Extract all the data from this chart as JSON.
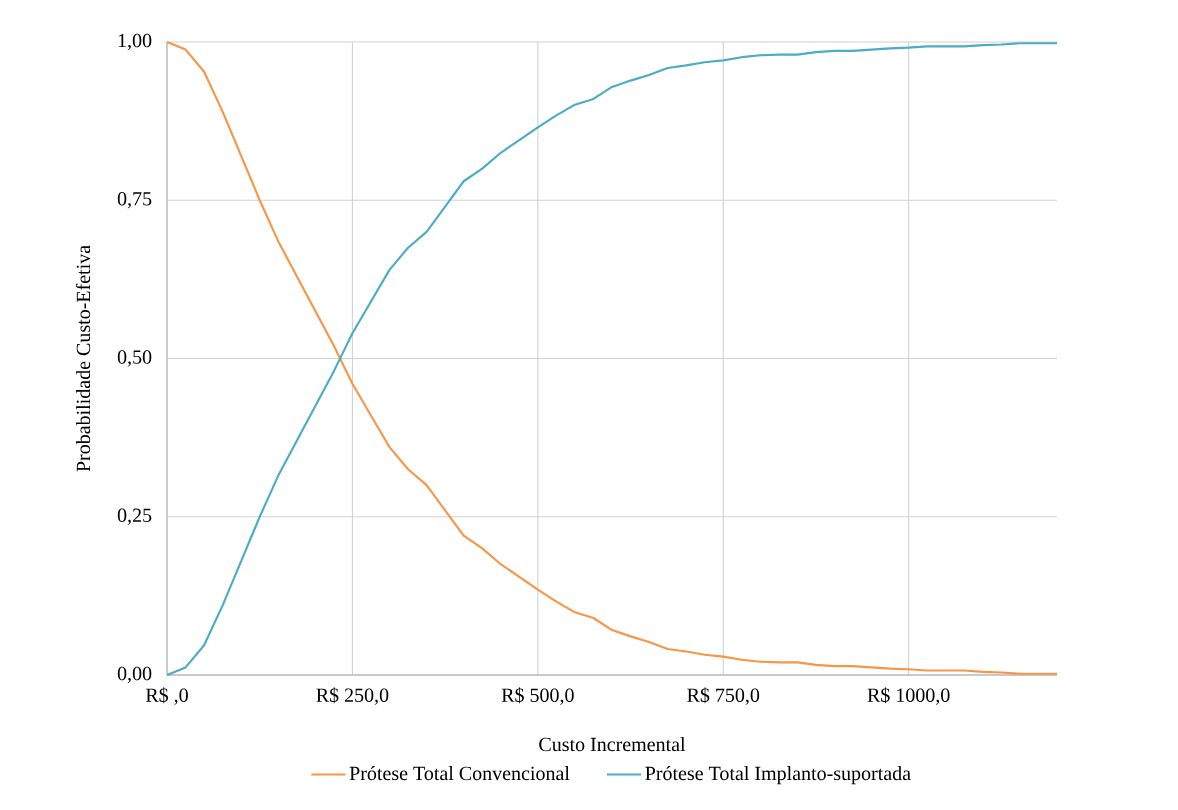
{
  "chart_data": {
    "type": "line",
    "xlabel": "Custo Incremental",
    "ylabel": "Probabilidade  Custo-Efetiva",
    "categories": [
      "R$ ,0",
      null,
      null,
      null,
      null,
      null,
      null,
      null,
      null,
      null,
      "R$ 250,0",
      null,
      null,
      null,
      null,
      null,
      null,
      null,
      null,
      null,
      "R$ 500,0",
      null,
      null,
      null,
      null,
      null,
      null,
      null,
      null,
      null,
      "R$ 750,0",
      null,
      null,
      null,
      null,
      null,
      null,
      null,
      null,
      null,
      "R$ 1000,0",
      null,
      null,
      null,
      null,
      null,
      null,
      null,
      null
    ],
    "series": [
      {
        "name": "Prótese Total Convencional",
        "color": "#f79646",
        "values": [
          1.0,
          0.988,
          0.953,
          0.89,
          0.82,
          0.75,
          0.685,
          0.63,
          0.575,
          0.52,
          0.46,
          0.41,
          0.36,
          0.325,
          0.3,
          0.26,
          0.22,
          0.2,
          0.175,
          0.155,
          0.135,
          0.116,
          0.099,
          0.09,
          0.071,
          0.061,
          0.052,
          0.041,
          0.037,
          0.032,
          0.029,
          0.024,
          0.021,
          0.02,
          0.02,
          0.016,
          0.014,
          0.014,
          0.012,
          0.01,
          0.009,
          0.007,
          0.007,
          0.007,
          0.005,
          0.004,
          0.002,
          0.002,
          0.002
        ]
      },
      {
        "name": "Prótese Total Implanto-suportada",
        "color": "#4bacc6",
        "values": [
          0.0,
          0.012,
          0.047,
          0.11,
          0.18,
          0.25,
          0.315,
          0.37,
          0.425,
          0.48,
          0.54,
          0.59,
          0.64,
          0.675,
          0.7,
          0.74,
          0.78,
          0.8,
          0.825,
          0.845,
          0.865,
          0.884,
          0.901,
          0.91,
          0.929,
          0.939,
          0.948,
          0.959,
          0.963,
          0.968,
          0.971,
          0.976,
          0.979,
          0.98,
          0.98,
          0.984,
          0.986,
          0.986,
          0.988,
          0.99,
          0.991,
          0.993,
          0.993,
          0.993,
          0.995,
          0.996,
          0.998,
          0.998,
          0.998
        ]
      }
    ],
    "ylim": [
      0,
      1
    ],
    "yticks": [
      {
        "value": 0,
        "label": "0,00"
      },
      {
        "value": 0.25,
        "label": "0,25"
      },
      {
        "value": 0.5,
        "label": "0,50"
      },
      {
        "value": 0.75,
        "label": "0,75"
      },
      {
        "value": 1,
        "label": "1,00"
      }
    ],
    "grid": true,
    "legend": "bottom",
    "marker": "none",
    "line_style": "solid"
  }
}
